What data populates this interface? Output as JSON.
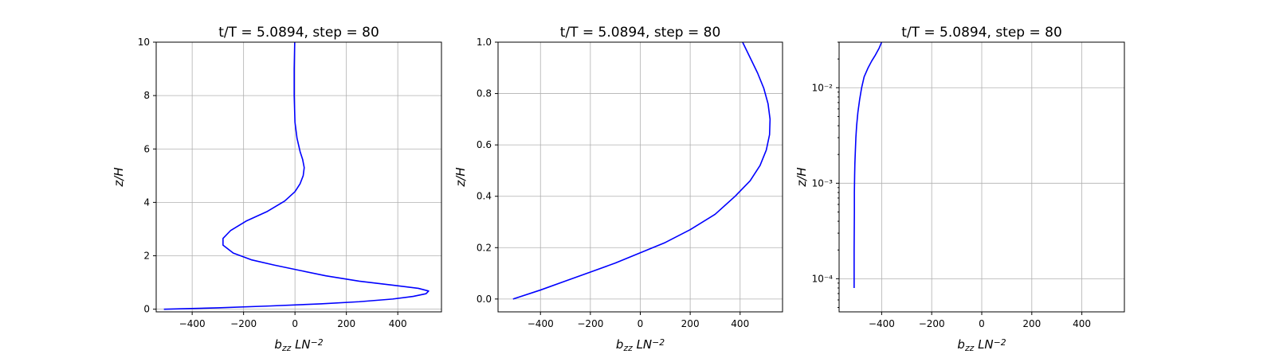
{
  "chart_data": [
    {
      "type": "line",
      "title": "t/T = 5.0894, step = 80",
      "xlabel": "b_zz LN^-2",
      "ylabel": "z/H",
      "xlim": [
        -540,
        570
      ],
      "ylim": [
        -0.1,
        10
      ],
      "yscale": "linear",
      "grid": true,
      "xticks": [
        -400,
        -200,
        0,
        200,
        400
      ],
      "xtick_labels": [
        "−400",
        "−200",
        "0",
        "200",
        "400"
      ],
      "yticks": [
        0,
        2,
        4,
        6,
        8,
        10
      ],
      "ytick_labels": [
        "0",
        "2",
        "4",
        "6",
        "8",
        "10"
      ],
      "series": [
        {
          "color": "#0000ff",
          "x": [
            -510,
            -300,
            -100,
            100,
            250,
            380,
            460,
            510,
            520,
            480,
            380,
            250,
            120,
            20,
            -80,
            -170,
            -240,
            -280,
            -280,
            -250,
            -190,
            -110,
            -40,
            0,
            20,
            32,
            36,
            30,
            20,
            8,
            0,
            -3,
            -3,
            -1
          ],
          "y": [
            0,
            0.05,
            0.12,
            0.2,
            0.28,
            0.38,
            0.48,
            0.58,
            0.68,
            0.78,
            0.9,
            1.05,
            1.25,
            1.45,
            1.65,
            1.85,
            2.1,
            2.4,
            2.65,
            2.95,
            3.3,
            3.65,
            4.05,
            4.4,
            4.7,
            5.0,
            5.3,
            5.6,
            5.9,
            6.4,
            7.0,
            8.0,
            9.0,
            10.0
          ]
        }
      ]
    },
    {
      "type": "line",
      "title": "t/T = 5.0894, step = 80",
      "xlabel": "b_zz LN^-2",
      "ylabel": "z/H",
      "xlim": [
        -570,
        570
      ],
      "ylim": [
        -0.05,
        1.0
      ],
      "yscale": "linear",
      "grid": true,
      "xticks": [
        -400,
        -200,
        0,
        200,
        400
      ],
      "xtick_labels": [
        "−400",
        "−200",
        "0",
        "200",
        "400"
      ],
      "yticks": [
        0,
        0.2,
        0.4,
        0.6,
        0.8,
        1.0
      ],
      "ytick_labels": [
        "0.0",
        "0.2",
        "0.4",
        "0.6",
        "0.8",
        "1.0"
      ],
      "series": [
        {
          "color": "#0000ff",
          "x": [
            -510,
            -400,
            -300,
            -200,
            -100,
            0,
            100,
            200,
            300,
            380,
            440,
            480,
            505,
            518,
            520,
            512,
            495,
            470,
            440,
            410
          ],
          "y": [
            0,
            0.035,
            0.07,
            0.105,
            0.14,
            0.18,
            0.22,
            0.27,
            0.33,
            0.4,
            0.46,
            0.52,
            0.58,
            0.64,
            0.7,
            0.76,
            0.82,
            0.88,
            0.94,
            1.0
          ]
        }
      ]
    },
    {
      "type": "line",
      "title": "t/T = 5.0894, step = 80",
      "xlabel": "b_zz LN^-2",
      "ylabel": "z/H",
      "xlim": [
        -570,
        570
      ],
      "ylim": [
        4.5e-05,
        0.03
      ],
      "yscale": "log",
      "grid": true,
      "xticks": [
        -400,
        -200,
        0,
        200,
        400
      ],
      "xtick_labels": [
        "−400",
        "−200",
        "0",
        "200",
        "400"
      ],
      "yticks": [
        0.0001,
        0.001,
        0.01
      ],
      "ytick_labels": [
        "10⁻⁴",
        "10⁻³",
        "10⁻²"
      ],
      "series": [
        {
          "color": "#0000ff",
          "x": [
            -510,
            -510,
            -509,
            -509,
            -508,
            -507,
            -505,
            -503,
            -500,
            -495,
            -488,
            -480,
            -470,
            -455,
            -440,
            -425,
            -410,
            -400
          ],
          "y": [
            8e-05,
            0.0002,
            0.0005,
            0.0008,
            0.0012,
            0.0016,
            0.0022,
            0.003,
            0.004,
            0.0055,
            0.0075,
            0.01,
            0.013,
            0.016,
            0.019,
            0.022,
            0.026,
            0.03
          ]
        }
      ]
    }
  ]
}
